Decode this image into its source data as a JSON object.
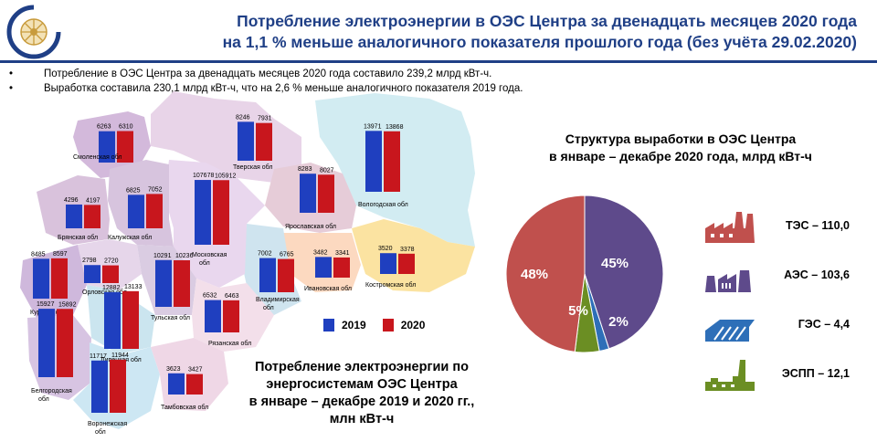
{
  "title": {
    "line1": "Потребление электроэнергии в ОЭС Центра за двенадцать  месяцев 2020 года",
    "line2": "на 1,1 % меньше аналогичного показателя прошлого года (без учёта 29.02.2020)"
  },
  "bullets": [
    "Потребление  в ОЭС Центра за двенадцать  месяцев 2020 года составило 239,2 млрд кВт-ч.",
    "Выработка  составила  230,1 млрд кВт-ч, что на 2,6 % меньше аналогичного показателя  2019 года."
  ],
  "colors": {
    "title": "#1f3f86",
    "bar2019": "#1f3fbf",
    "bar2020": "#c8161d",
    "tes": "#c0504d",
    "aes": "#5e4a8b",
    "ges": "#2e6fb8",
    "espp": "#6b8e23"
  },
  "map_legend": {
    "y2019": "2019",
    "y2020": "2020"
  },
  "map_caption": {
    "line1": "Потребление электроэнергии по",
    "line2": "энергосистемам ОЭС Центра",
    "line3": "в январе – декабре 2019 и 2020 гг.,",
    "line4": "млн кВт-ч"
  },
  "pie_title": {
    "line1": "Структура выработки в ОЭС Центра",
    "line2": "в январе – декабре 2020 года, млрд кВт-ч"
  },
  "generation_legend": [
    {
      "icon": "thermal-plant-icon",
      "label": "ТЭС – 110,0"
    },
    {
      "icon": "nuclear-plant-icon",
      "label": "АЭС – 103,6"
    },
    {
      "icon": "hydro-plant-icon",
      "label": "ГЭС – 4,4"
    },
    {
      "icon": "industrial-plant-icon",
      "label": "ЭСПП – 12,1"
    }
  ],
  "chart_data": [
    {
      "type": "bar",
      "series": [
        {
          "name": "2019",
          "color": "#1f3fbf"
        },
        {
          "name": "2020",
          "color": "#c8161d"
        }
      ],
      "regions": [
        {
          "name": "Смоленская обл",
          "v2019": 6263,
          "v2020": 6310
        },
        {
          "name": "Тверская обл",
          "v2019": 8246,
          "v2020": 7931
        },
        {
          "name": "Вологодская обл",
          "v2019": 13971,
          "v2020": 13868
        },
        {
          "name": "Брянская обл",
          "v2019": 4296,
          "v2020": 4197
        },
        {
          "name": "Калужская обл",
          "v2019": 6825,
          "v2020": 7052
        },
        {
          "name": "Московская обл",
          "v2019": 107678,
          "v2020": 105912
        },
        {
          "name": "Ярославская обл",
          "v2019": 8283,
          "v2020": 8027
        },
        {
          "name": "Орловская обл",
          "v2019": 2798,
          "v2020": 2720
        },
        {
          "name": "Тульская обл",
          "v2019": 10291,
          "v2020": 10236
        },
        {
          "name": "Рязанская обл",
          "v2019": 6532,
          "v2020": 6463
        },
        {
          "name": "Владимирская обл",
          "v2019": 7002,
          "v2020": 6765
        },
        {
          "name": "Ивановская обл",
          "v2019": 3482,
          "v2020": 3341
        },
        {
          "name": "Костромская обл",
          "v2019": 3520,
          "v2020": 3378
        },
        {
          "name": "Курская обл",
          "v2019": 8485,
          "v2020": 8597
        },
        {
          "name": "Липецкая обл",
          "v2019": 12882,
          "v2020": 13133
        },
        {
          "name": "Белгородская обл",
          "v2019": 15927,
          "v2020": 15892
        },
        {
          "name": "Воронежская обл",
          "v2019": 11717,
          "v2020": 11944
        },
        {
          "name": "Тамбовская обл",
          "v2019": 3623,
          "v2020": 3427
        }
      ]
    },
    {
      "type": "pie",
      "slices": [
        {
          "name": "АЭС",
          "value": 45,
          "label": "45%",
          "color": "#5e4a8b"
        },
        {
          "name": "ГЭС",
          "value": 2,
          "label": "2%",
          "color": "#2e6fb8"
        },
        {
          "name": "ЭСПП",
          "value": 5,
          "label": "5%",
          "color": "#6b8e23"
        },
        {
          "name": "ТЭС",
          "value": 48,
          "label": "48%",
          "color": "#c0504d"
        }
      ]
    }
  ]
}
